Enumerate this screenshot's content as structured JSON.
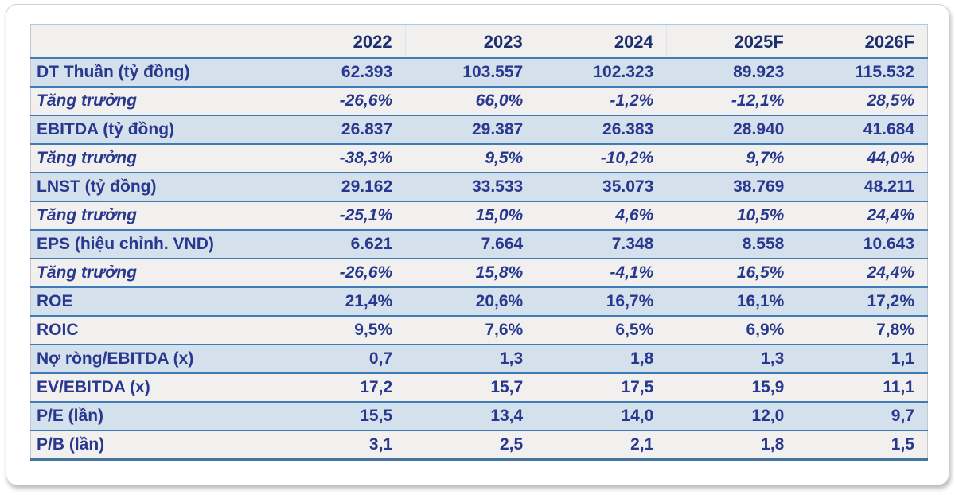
{
  "chart_data": {
    "type": "table",
    "columns": [
      "",
      "2022",
      "2023",
      "2024",
      "2025F",
      "2026F"
    ],
    "rows": [
      {
        "label": "DT Thuần (tỷ đồng)",
        "italic": false,
        "values": [
          "62.393",
          "103.557",
          "102.323",
          "89.923",
          "115.532"
        ]
      },
      {
        "label": "Tăng trưởng",
        "italic": true,
        "values": [
          "-26,6%",
          "66,0%",
          "-1,2%",
          "-12,1%",
          "28,5%"
        ]
      },
      {
        "label": "EBITDA (tỷ đồng)",
        "italic": false,
        "values": [
          "26.837",
          "29.387",
          "26.383",
          "28.940",
          "41.684"
        ]
      },
      {
        "label": "Tăng trưởng",
        "italic": true,
        "values": [
          "-38,3%",
          "9,5%",
          "-10,2%",
          "9,7%",
          "44,0%"
        ]
      },
      {
        "label": "LNST (tỷ đồng)",
        "italic": false,
        "values": [
          "29.162",
          "33.533",
          "35.073",
          "38.769",
          "48.211"
        ]
      },
      {
        "label": "Tăng trưởng",
        "italic": true,
        "values": [
          "-25,1%",
          "15,0%",
          "4,6%",
          "10,5%",
          "24,4%"
        ]
      },
      {
        "label": "EPS (hiệu chỉnh. VND)",
        "italic": false,
        "values": [
          "6.621",
          "7.664",
          "7.348",
          "8.558",
          "10.643"
        ]
      },
      {
        "label": "Tăng trưởng",
        "italic": true,
        "values": [
          "-26,6%",
          "15,8%",
          "-4,1%",
          "16,5%",
          "24,4%"
        ]
      },
      {
        "label": "ROE",
        "italic": false,
        "values": [
          "21,4%",
          "20,6%",
          "16,7%",
          "16,1%",
          "17,2%"
        ]
      },
      {
        "label": "ROIC",
        "italic": false,
        "values": [
          "9,5%",
          "7,6%",
          "6,5%",
          "6,9%",
          "7,8%"
        ]
      },
      {
        "label": "Nợ ròng/EBITDA (x)",
        "italic": false,
        "values": [
          "0,7",
          "1,3",
          "1,8",
          "1,3",
          "1,1"
        ]
      },
      {
        "label": "EV/EBITDA (x)",
        "italic": false,
        "values": [
          "17,2",
          "15,7",
          "17,5",
          "15,9",
          "11,1"
        ]
      },
      {
        "label": "P/E (lần)",
        "italic": false,
        "values": [
          "15,5",
          "13,4",
          "14,0",
          "12,0",
          "9,7"
        ]
      },
      {
        "label": "P/B (lần)",
        "italic": false,
        "values": [
          "3,1",
          "2,5",
          "2,1",
          "1,8",
          "1,5"
        ]
      }
    ]
  },
  "colors": {
    "body_text_navy": "#28388e",
    "header_text_navy": "#1e2f70",
    "row_shaded_bg": "#d5e0ed",
    "row_plain_bg": "#f1f0ee",
    "row_separator_blue": "#3e7cb7",
    "table_top_border": "#a9cbe6",
    "table_bottom_border": "#44749e"
  }
}
